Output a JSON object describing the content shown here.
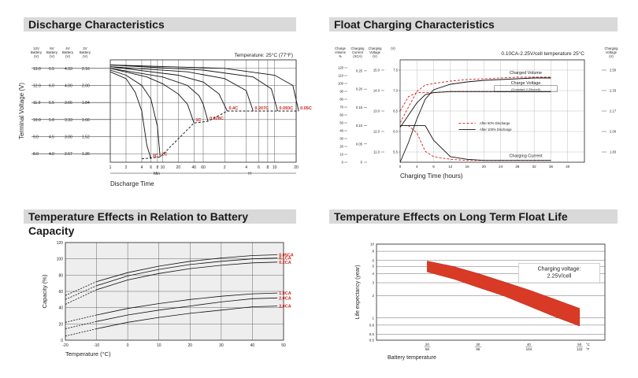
{
  "panels": {
    "discharge": {
      "title": "Discharge Characteristics",
      "temperature_note": "Temperature: 25°C (77°F)",
      "ylabel": "Terminal Voltage (V)",
      "xlabel": "Discharge Time",
      "x_unit_min": "Min",
      "x_unit_h": "H",
      "col_headers": [
        {
          "line1": "12V",
          "line2": "Battery",
          "line3": "(V)"
        },
        {
          "line1": "6V",
          "line2": "Battery",
          "line3": "(V)"
        },
        {
          "line1": "4V",
          "line2": "Battery",
          "line3": "(V)"
        },
        {
          "line1": "2V",
          "line2": "Battery",
          "line3": "(V)"
        }
      ],
      "volt_rows": [
        [
          "13.0",
          "6.5",
          "4.33",
          "2.16"
        ],
        [
          "12.0",
          "6.0",
          "4.00",
          "2.00"
        ],
        [
          "11.0",
          "5.5",
          "3.66",
          "1.84"
        ],
        [
          "10.0",
          "5.0",
          "3.33",
          "1.66"
        ],
        [
          "9.0",
          "4.5",
          "3.00",
          "1.52"
        ],
        [
          "8.0",
          "4.0",
          "2.67",
          "1.36"
        ]
      ],
      "xticks_min": [
        "1",
        "2",
        "4",
        "6",
        "8",
        "10",
        "20",
        "40",
        "60"
      ],
      "xticks_h": [
        "2",
        "4",
        "6",
        "8",
        "10",
        "20"
      ]
    },
    "float": {
      "title": "Float Charging Characteristics",
      "condition": "0.10CA-2.25V/cell  temperature 25°C",
      "xlabel": "Charging Time (hours)",
      "col_headers": [
        {
          "line1": "Charge",
          "line2": "Volume",
          "line3": "%"
        },
        {
          "line1": "Charging",
          "line2": "Current",
          "line3": "(XCA)"
        },
        {
          "line1": "Charging",
          "line2": "Voltage",
          "line3": "(V)"
        },
        {
          "line1": "(V)",
          "line2": "",
          "": "",
          "line3": ""
        }
      ],
      "right_header": {
        "line1": "Charging",
        "line2": "Voltage",
        "line3": "(V)"
      },
      "vol_ticks": [
        "120",
        "110",
        "100",
        "90",
        "80",
        "70",
        "60",
        "50",
        "40",
        "30",
        "20",
        "10",
        "0"
      ],
      "cur_ticks": [
        "0.25",
        "0.20",
        "0.15",
        "0.10",
        "0.05",
        "0"
      ],
      "v12_ticks": [
        "15.0",
        "14.0",
        "13.0",
        "12.0",
        "11.0"
      ],
      "v6_ticks": [
        "7.5",
        "7.0",
        "6.5",
        "6.0",
        "5.5"
      ],
      "right_ticks": [
        "2.50",
        "2.33",
        "2.17",
        "2.00",
        "1.83"
      ],
      "xticks": [
        "0",
        "4",
        "8",
        "12",
        "16",
        "20",
        "24",
        "28",
        "32",
        "36",
        "40"
      ],
      "label_charged_volume": "Charged Volume",
      "label_charge_voltage": "Charge Voltage",
      "label_constant": "(Constant 2.25v/cell)",
      "label_charging_current": "Charging Current",
      "legend_50": "After  50% Discharge",
      "legend_100": "After 100% Discharge"
    },
    "temp_capacity": {
      "title": "Temperature Effects in Relation to Battery Capacity",
      "ylabel": "Capacity (%)",
      "xlabel": "Temperature (°C)",
      "yticks": [
        "120",
        "100",
        "80",
        "60",
        "40",
        "20",
        "0"
      ],
      "xticks": [
        "-20",
        "-10",
        "0",
        "10",
        "20",
        "30",
        "40",
        "50"
      ]
    },
    "float_life": {
      "title": "Temperature Effects on Long Term Float Life",
      "ylabel": "Life expectancy (year)",
      "xlabel": "Battery temperature",
      "yticks": [
        "10",
        "8",
        "6",
        "5",
        "4",
        "3",
        "2",
        "1",
        "0.8",
        "0.6",
        "0.5"
      ],
      "xticks_c": [
        "20",
        "30",
        "40",
        "50"
      ],
      "xticks_f": [
        "68",
        "86",
        "104",
        "122"
      ],
      "unit_c": "°C",
      "unit_f": "°F",
      "note_line1": "Charging voltage:",
      "note_line2": "2.25V/cell"
    }
  },
  "chart_data": [
    {
      "type": "line",
      "title": "Discharge Characteristics",
      "xlabel": "Discharge Time",
      "ylabel": "Terminal Voltage (V)",
      "x_scale": "log-time",
      "ylim": [
        7.5,
        13.5
      ],
      "series": [
        {
          "name": "3C",
          "points": [
            [
              1,
              12.8
            ],
            [
              2,
              12.4
            ],
            [
              3,
              11.6
            ],
            [
              4,
              10.5
            ],
            [
              5,
              8.5
            ],
            [
              6,
              7.7
            ]
          ]
        },
        {
          "name": "2C",
          "points": [
            [
              1,
              12.9
            ],
            [
              2,
              12.6
            ],
            [
              4,
              12.0
            ],
            [
              6,
              11.2
            ],
            [
              8,
              9.6
            ],
            [
              9,
              7.8
            ]
          ]
        },
        {
          "name": "1C",
          "points": [
            [
              1,
              13.0
            ],
            [
              5,
              12.5
            ],
            [
              10,
              12.1
            ],
            [
              20,
              11.5
            ],
            [
              30,
              10.9
            ],
            [
              40,
              9.8
            ]
          ]
        },
        {
          "name": "0.628C",
          "points": [
            [
              1,
              13.0
            ],
            [
              10,
              12.5
            ],
            [
              30,
              12.0
            ],
            [
              50,
              11.4
            ],
            [
              60,
              10.9
            ],
            [
              70,
              9.9
            ]
          ]
        },
        {
          "name": "0.4C",
          "points": [
            [
              1,
              13.1
            ],
            [
              20,
              12.6
            ],
            [
              60,
              12.2
            ],
            [
              100,
              11.5
            ],
            [
              130,
              10.5
            ]
          ]
        },
        {
          "name": "0.207C",
          "points": [
            [
              1,
              13.1
            ],
            [
              30,
              12.8
            ],
            [
              120,
              12.4
            ],
            [
              240,
              11.7
            ],
            [
              300,
              10.5
            ]
          ]
        },
        {
          "name": "0.093C",
          "points": [
            [
              1,
              13.2
            ],
            [
              60,
              12.9
            ],
            [
              300,
              12.5
            ],
            [
              540,
              11.8
            ],
            [
              660,
              10.5
            ]
          ]
        },
        {
          "name": "0.05C",
          "points": [
            [
              1,
              13.2
            ],
            [
              120,
              13.0
            ],
            [
              600,
              12.6
            ],
            [
              1080,
              12.0
            ],
            [
              1300,
              10.5
            ]
          ]
        }
      ],
      "cutoff_curve": [
        [
          4,
          7.7
        ],
        [
          9,
          7.8
        ],
        [
          40,
          9.8
        ],
        [
          70,
          9.9
        ],
        [
          130,
          10.5
        ],
        [
          300,
          10.5
        ],
        [
          660,
          10.5
        ],
        [
          1300,
          10.5
        ]
      ]
    },
    {
      "type": "line",
      "title": "Float Charging Characteristics",
      "xlabel": "Charging Time (hours)",
      "x": [
        0,
        2,
        4,
        6,
        8,
        12,
        16,
        20,
        24,
        28,
        32,
        36
      ],
      "series": [
        {
          "name": "Charged Volume (After 50% Discharge)",
          "values": [
            50,
            70,
            90,
            98,
            100,
            103,
            105,
            106,
            107,
            108,
            108,
            108
          ]
        },
        {
          "name": "Charged Volume (After 100% Discharge)",
          "values": [
            0,
            25,
            55,
            80,
            92,
            99,
            102,
            104,
            105,
            106,
            107,
            107
          ]
        },
        {
          "name": "Charge Voltage (After 50% Discharge)",
          "values": [
            13.0,
            13.7,
            13.9,
            13.9,
            13.9,
            13.95,
            13.95,
            13.95,
            13.95,
            13.95,
            13.95,
            13.95
          ]
        },
        {
          "name": "Charge Voltage (After 100% Discharge)",
          "values": [
            12.2,
            12.8,
            13.4,
            13.8,
            13.9,
            13.95,
            13.95,
            13.95,
            13.95,
            13.95,
            13.95,
            13.95
          ]
        },
        {
          "name": "Charging Current (After 50% Discharge)",
          "values": [
            0.1,
            0.1,
            0.08,
            0.03,
            0.015,
            0.008,
            0.005,
            0.005,
            0.005,
            0.005,
            0.005,
            0.005
          ]
        },
        {
          "name": "Charging Current (After 100% Discharge)",
          "values": [
            0.1,
            0.1,
            0.1,
            0.1,
            0.06,
            0.015,
            0.008,
            0.005,
            0.005,
            0.005,
            0.005,
            0.005
          ]
        }
      ]
    },
    {
      "type": "line",
      "title": "Temperature Effects in Relation to Battery Capacity",
      "xlabel": "Temperature (°C)",
      "ylabel": "Capacity (%)",
      "xlim": [
        -20,
        50
      ],
      "ylim": [
        0,
        120
      ],
      "x": [
        -20,
        -10,
        0,
        10,
        20,
        30,
        40,
        48
      ],
      "series": [
        {
          "name": "0.05CA",
          "values": [
            55,
            72,
            83,
            91,
            97,
            101,
            104,
            105
          ]
        },
        {
          "name": "0.1CA",
          "values": [
            50,
            67,
            79,
            87,
            93,
            97,
            100,
            101
          ]
        },
        {
          "name": "0.2CA",
          "values": [
            44,
            62,
            74,
            82,
            88,
            92,
            95,
            96
          ]
        },
        {
          "name": "1.0CA",
          "values": [
            22,
            31,
            39,
            45,
            50,
            54,
            57,
            58
          ]
        },
        {
          "name": "2.0CA",
          "values": [
            14,
            23,
            31,
            37,
            42,
            47,
            51,
            52
          ]
        },
        {
          "name": "3.0CA",
          "values": [
            5,
            14,
            22,
            28,
            33,
            37,
            41,
            42
          ]
        }
      ]
    },
    {
      "type": "area",
      "title": "Temperature Effects on Long Term Float Life",
      "xlabel": "Battery temperature",
      "ylabel": "Life expectancy (year)",
      "y_scale": "log",
      "ylim": [
        0.5,
        10
      ],
      "x": [
        20,
        25,
        30,
        35,
        40,
        45,
        50
      ],
      "upper": [
        5.9,
        5.0,
        4.0,
        3.1,
        2.4,
        1.8,
        1.35
      ],
      "lower": [
        4.2,
        3.4,
        2.6,
        2.0,
        1.45,
        1.05,
        0.78
      ]
    }
  ]
}
